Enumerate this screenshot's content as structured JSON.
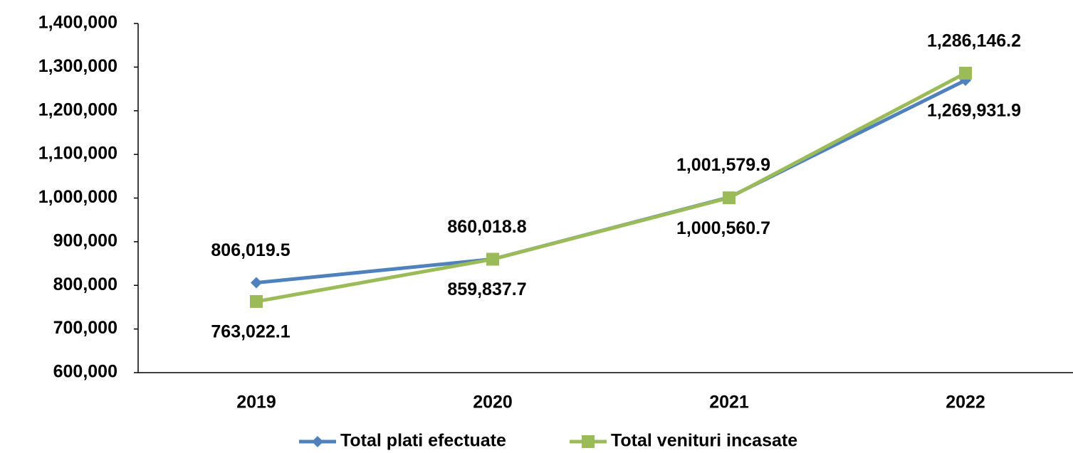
{
  "chart_data": {
    "type": "line",
    "categories": [
      "2019",
      "2020",
      "2021",
      "2022"
    ],
    "series": [
      {
        "name": "Total plati efectuate",
        "color": "#4f81bd",
        "marker": "diamond",
        "values": [
          806019.5,
          860018.8,
          1001579.9,
          1269931.9
        ],
        "value_labels": [
          "806,019.5",
          "860,018.8",
          "1,001,579.9",
          "1,269,931.9"
        ]
      },
      {
        "name": "Total venituri incasate",
        "color": "#9bbb59",
        "marker": "square",
        "values": [
          763022.1,
          859837.7,
          1000560.7,
          1286146.2
        ],
        "value_labels": [
          "763,022.1",
          "859,837.7",
          "1,000,560.7",
          "1,286,146.2"
        ]
      }
    ],
    "ylim": [
      600000,
      1400000
    ],
    "yticks": [
      {
        "value": 600000,
        "label": "600,000"
      },
      {
        "value": 700000,
        "label": "700,000"
      },
      {
        "value": 800000,
        "label": "800,000"
      },
      {
        "value": 900000,
        "label": "900,000"
      },
      {
        "value": 1000000,
        "label": "1,000,000"
      },
      {
        "value": 1100000,
        "label": "1,100,000"
      },
      {
        "value": 1200000,
        "label": "1,200,000"
      },
      {
        "value": 1300000,
        "label": "1,300,000"
      },
      {
        "value": 1400000,
        "label": "1,400,000"
      }
    ],
    "grid": false,
    "legend": "bottom"
  }
}
